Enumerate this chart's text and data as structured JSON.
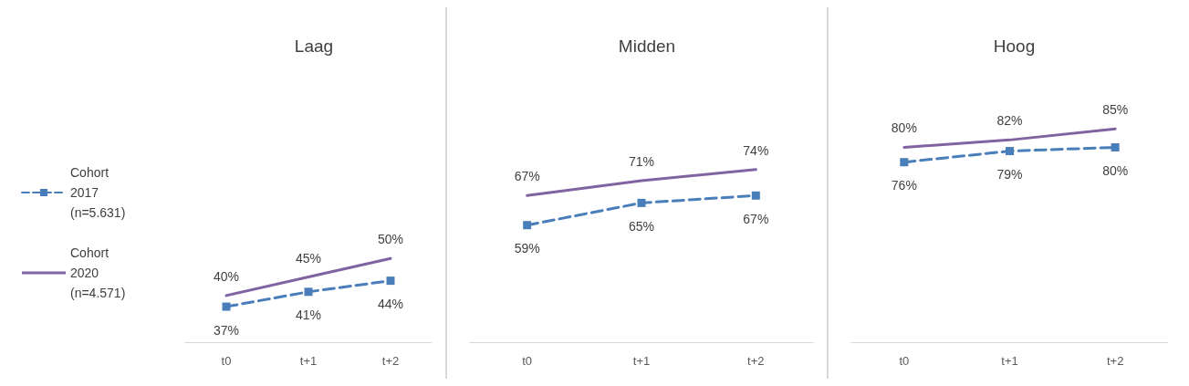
{
  "chart_data": [
    {
      "type": "line",
      "title": "Laag",
      "categories": [
        "t0",
        "t+1",
        "t+2"
      ],
      "tick_labels": "x",
      "legend": "left",
      "grid": false,
      "series": [
        {
          "name": "Cohort 2017 (n=5.631)",
          "color": "#4a7ebb",
          "values": [
            37,
            41,
            44
          ],
          "value_labels": [
            "37%",
            "41%",
            "44%"
          ],
          "marker": "square",
          "line_style": "dashed"
        },
        {
          "name": "Cohort 2020 (n=4.571)",
          "color": "#8064a2",
          "values": [
            40,
            45,
            50
          ],
          "value_labels": [
            "40%",
            "45%",
            "50%"
          ],
          "marker": "none",
          "line_style": "solid"
        }
      ]
    },
    {
      "type": "line",
      "title": "Midden",
      "categories": [
        "t0",
        "t+1",
        "t+2"
      ],
      "tick_labels": "x",
      "grid": false,
      "series": [
        {
          "color": "#4a7ebb",
          "values": [
            59,
            65,
            67
          ],
          "value_labels": [
            "59%",
            "65%",
            "67%"
          ],
          "marker": "square",
          "line_style": "dashed"
        },
        {
          "color": "#8064a2",
          "values": [
            67,
            71,
            74
          ],
          "value_labels": [
            "67%",
            "71%",
            "74%"
          ],
          "marker": "none",
          "line_style": "solid"
        }
      ]
    },
    {
      "type": "line",
      "title": "Hoog",
      "categories": [
        "t0",
        "t+1",
        "t+2"
      ],
      "tick_labels": "x",
      "grid": false,
      "series": [
        {
          "color": "#4a7ebb",
          "values": [
            76,
            79,
            80
          ],
          "value_labels": [
            "76%",
            "79%",
            "80%"
          ],
          "marker": "square",
          "line_style": "dashed"
        },
        {
          "color": "#8064a2",
          "values": [
            80,
            82,
            85
          ],
          "value_labels": [
            "80%",
            "82%",
            "85%"
          ],
          "marker": "none",
          "line_style": "solid"
        }
      ]
    }
  ]
}
